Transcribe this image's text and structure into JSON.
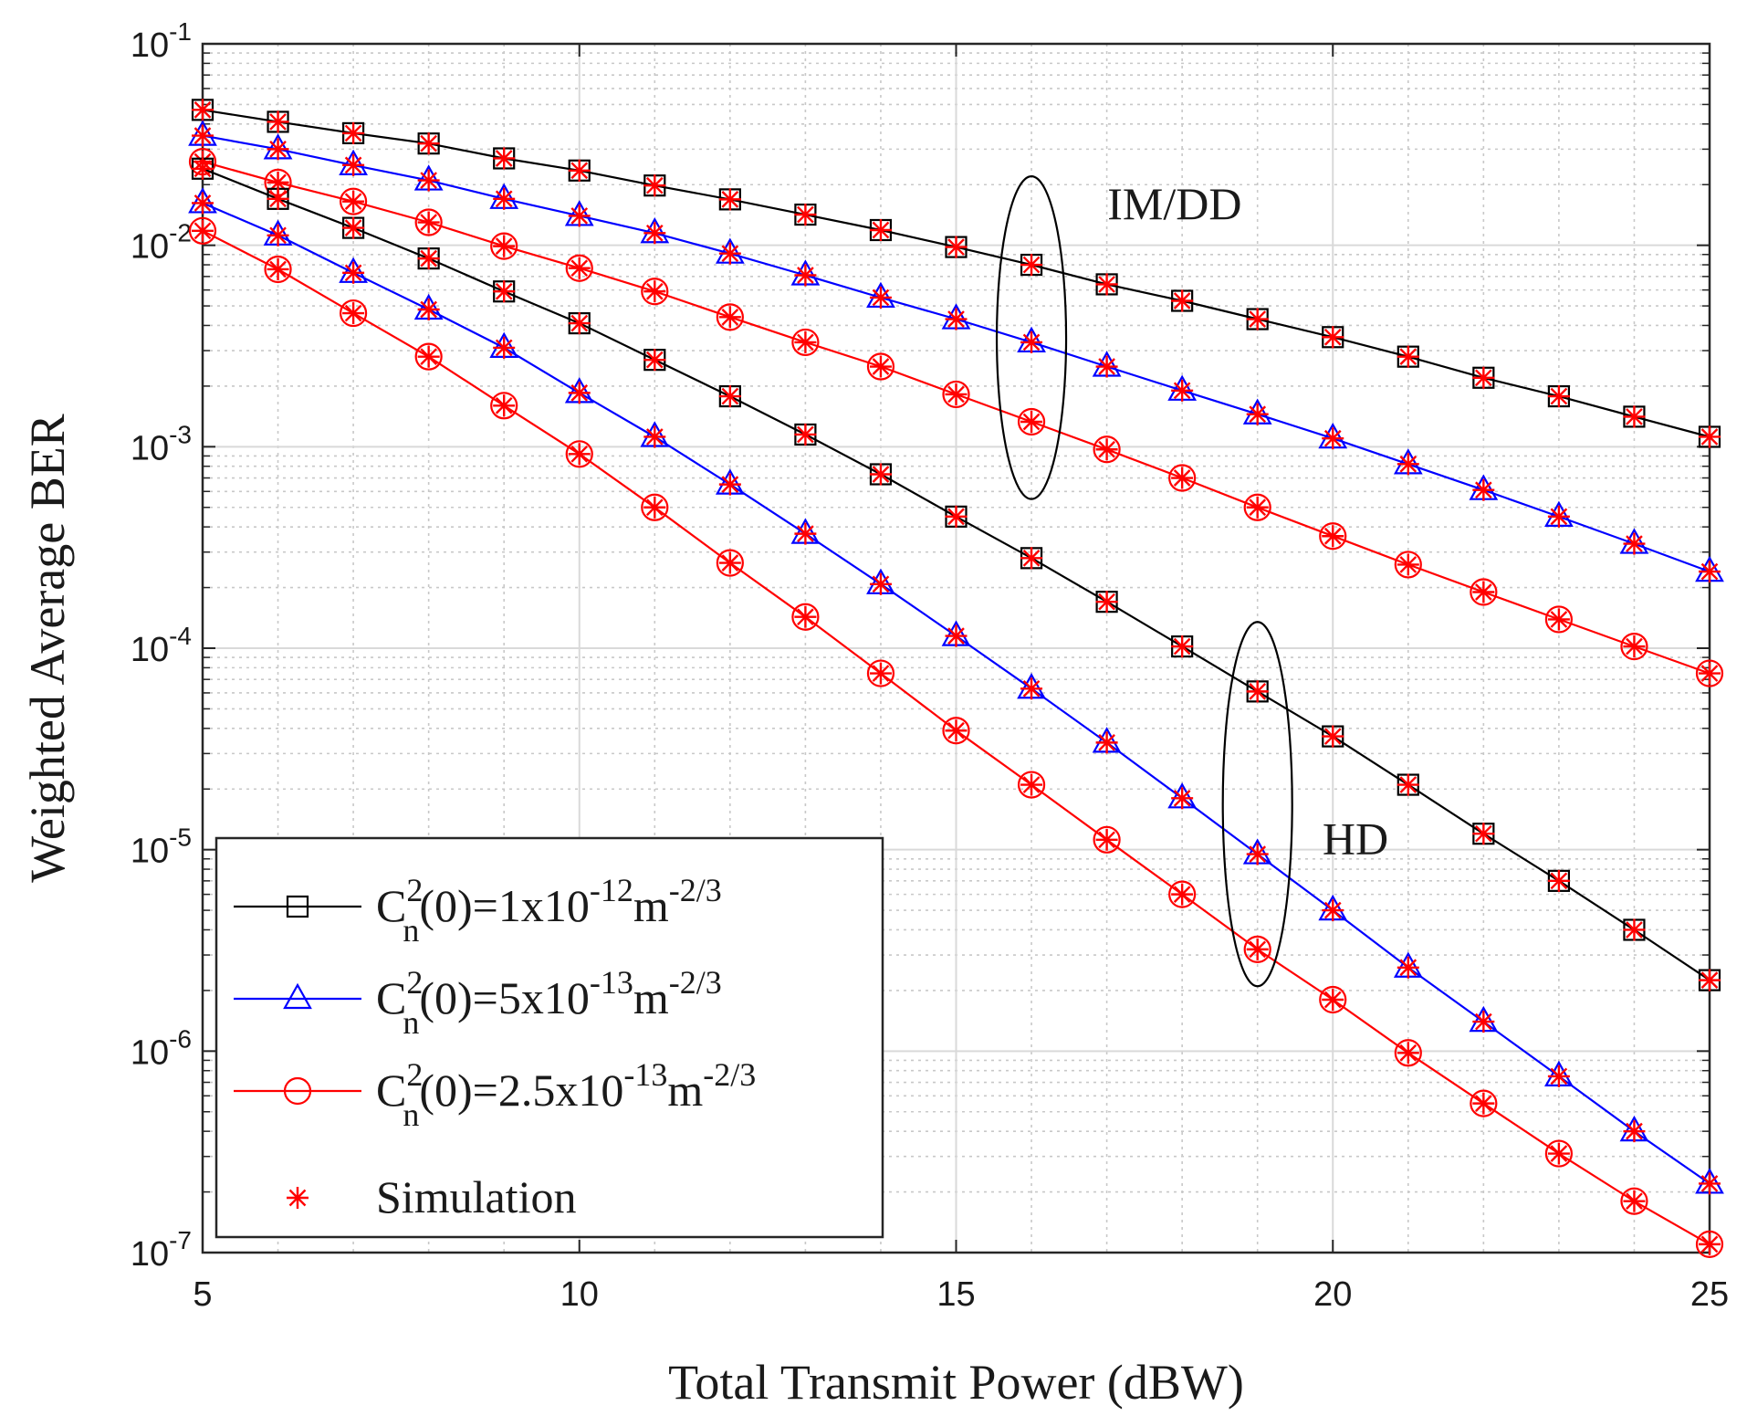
{
  "chart_data": {
    "type": "line",
    "xlabel": "Total Transmit Power (dBW)",
    "ylabel": "Weighted Average BER",
    "x_scale": "linear",
    "y_scale": "log",
    "xlim": [
      5,
      25
    ],
    "ylim": [
      1e-07,
      0.1
    ],
    "x_ticks": [
      5,
      10,
      15,
      20,
      25
    ],
    "y_tick_exponents": [
      -7,
      -6,
      -5,
      -4,
      -3,
      -2,
      -1
    ],
    "y_tick_base": "10",
    "grid": true,
    "minor_grid": true,
    "x": [
      5,
      6,
      7,
      8,
      9,
      10,
      11,
      12,
      13,
      14,
      15,
      16,
      17,
      18,
      19,
      20,
      21,
      22,
      23,
      24,
      25
    ],
    "series": [
      {
        "name": "C_n^2(0)=1x10^-12 m^-2/3",
        "group": "IM/DD",
        "color": "#000000",
        "marker": "square",
        "values": [
          0.047,
          0.041,
          0.036,
          0.032,
          0.027,
          0.0235,
          0.0198,
          0.0169,
          0.0142,
          0.0119,
          0.0098,
          0.008,
          0.0064,
          0.0053,
          0.0043,
          0.0035,
          0.0028,
          0.0022,
          0.00178,
          0.00141,
          0.00112
        ]
      },
      {
        "name": "C_n^2(0)=5x10^-13 m^-2/3",
        "group": "IM/DD",
        "color": "#0000ff",
        "marker": "triangle",
        "values": [
          0.035,
          0.03,
          0.025,
          0.021,
          0.017,
          0.014,
          0.0115,
          0.0091,
          0.0071,
          0.0055,
          0.0043,
          0.0033,
          0.0025,
          0.0019,
          0.00145,
          0.0011,
          0.00082,
          0.00061,
          0.00045,
          0.00033,
          0.00024
        ]
      },
      {
        "name": "C_n^2(0)=2.5x10^-13 m^-2/3",
        "group": "IM/DD",
        "color": "#ff0000",
        "marker": "circle",
        "values": [
          0.026,
          0.0205,
          0.0165,
          0.013,
          0.0099,
          0.0077,
          0.0059,
          0.0044,
          0.0033,
          0.0025,
          0.00182,
          0.00133,
          0.00097,
          0.0007,
          0.0005,
          0.00036,
          0.00026,
          0.00019,
          0.000139,
          0.000102,
          7.5e-05
        ]
      },
      {
        "name": "C_n^2(0)=1x10^-12 m^-2/3",
        "group": "HD",
        "color": "#000000",
        "marker": "square",
        "values": [
          0.024,
          0.017,
          0.0122,
          0.0086,
          0.0059,
          0.0041,
          0.0027,
          0.00178,
          0.00115,
          0.00073,
          0.00045,
          0.00028,
          0.00017,
          0.000102,
          6.1e-05,
          3.65e-05,
          2.1e-05,
          1.2e-05,
          7e-06,
          4e-06,
          2.25e-06
        ]
      },
      {
        "name": "C_n^2(0)=5x10^-13 m^-2/3",
        "group": "HD",
        "color": "#0000ff",
        "marker": "triangle",
        "values": [
          0.0162,
          0.0112,
          0.0073,
          0.0048,
          0.0031,
          0.00185,
          0.00112,
          0.00065,
          0.00037,
          0.000208,
          0.000115,
          6.3e-05,
          3.4e-05,
          1.8e-05,
          9.5e-06,
          5e-06,
          2.6e-06,
          1.4e-06,
          7.5e-07,
          4e-07,
          2.2e-07
        ]
      },
      {
        "name": "C_n^2(0)=2.5x10^-13 m^-2/3",
        "group": "HD",
        "color": "#ff0000",
        "marker": "circle",
        "values": [
          0.0118,
          0.0076,
          0.0046,
          0.0028,
          0.0016,
          0.00092,
          0.0005,
          0.000265,
          0.000143,
          7.5e-05,
          3.9e-05,
          2.1e-05,
          1.12e-05,
          6e-06,
          3.2e-06,
          1.8e-06,
          9.8e-07,
          5.5e-07,
          3.1e-07,
          1.8e-07,
          1.1e-07
        ]
      }
    ],
    "simulation_marker": {
      "label": "Simulation",
      "color": "#ff0000",
      "marker": "asterisk"
    },
    "annotations": [
      {
        "text": "IM/DD",
        "x": 17.9,
        "y": 0.0135
      },
      {
        "text": "HD",
        "x": 20.3,
        "y": 9.5e-06
      }
    ],
    "ellipses": [
      {
        "group": "IM/DD",
        "cx": 16,
        "y_top": 0.022,
        "y_bottom": 0.00055
      },
      {
        "group": "HD",
        "cx": 19,
        "y_top": 0.000135,
        "y_bottom": 2.1e-06
      }
    ],
    "legend": {
      "placement": "bottom-left",
      "entries": [
        {
          "base": "C",
          "sup": "2",
          "sub": "n",
          "mid": "(0)=1x10",
          "exp": "-12",
          "unit": "m",
          "unit_exp": "-2/3",
          "color": "#000000",
          "marker": "square"
        },
        {
          "base": "C",
          "sup": "2",
          "sub": "n",
          "mid": "(0)=5x10",
          "exp": "-13",
          "unit": "m",
          "unit_exp": "-2/3",
          "color": "#0000ff",
          "marker": "triangle"
        },
        {
          "base": "C",
          "sup": "2",
          "sub": "n",
          "mid": "(0)=2.5x10",
          "exp": "-13",
          "unit": "m",
          "unit_exp": "-2/3",
          "color": "#ff0000",
          "marker": "circle"
        },
        {
          "label": "Simulation",
          "color": "#ff0000",
          "marker": "asterisk"
        }
      ]
    }
  }
}
